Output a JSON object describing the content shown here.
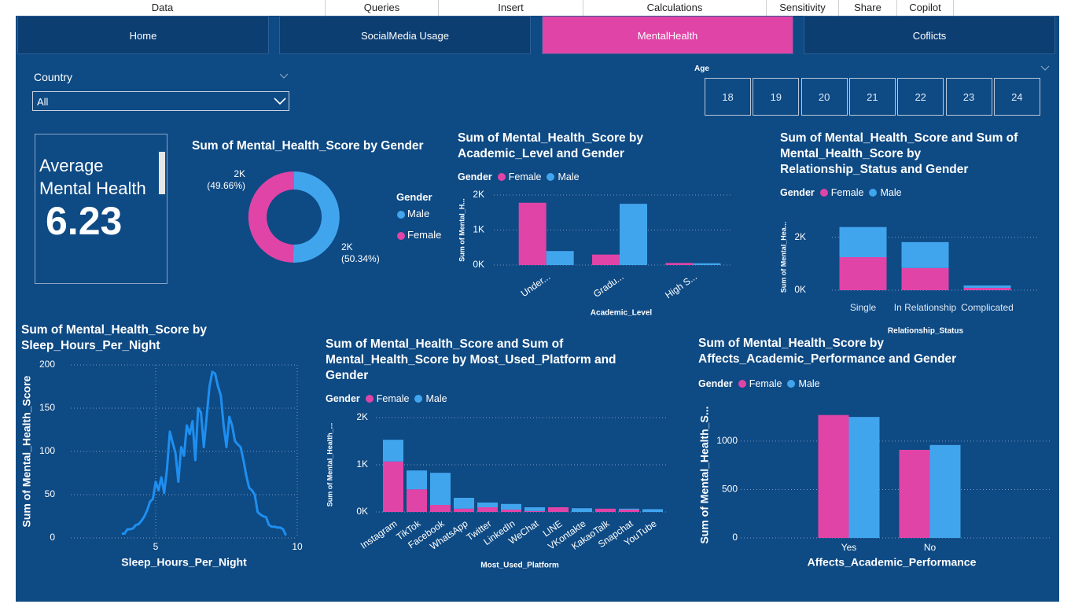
{
  "menu": [
    "Data",
    "Queries",
    "Insert",
    "Calculations",
    "Sensitivity",
    "Share",
    "Copilot"
  ],
  "tabs": [
    {
      "label": "Home",
      "active": false
    },
    {
      "label": "SocialMedia Usage",
      "active": false
    },
    {
      "label": "MentalHealth",
      "active": true
    },
    {
      "label": "Coflicts",
      "active": false
    }
  ],
  "filters": {
    "country": {
      "label": "Country",
      "value": "All"
    },
    "age": {
      "label": "Age",
      "options": [
        18,
        19,
        20,
        21,
        22,
        23,
        24
      ]
    }
  },
  "card": {
    "label": "Average Mental Health",
    "value": 6.23
  },
  "chart_data": [
    {
      "type": "donut",
      "title": "Sum of Mental_Health_Score by Gender",
      "legend_title": "Gender",
      "categories": [
        "Male",
        "Female"
      ],
      "values": [
        2212,
        2182
      ],
      "value_labels": [
        "2K (50.34%)",
        "2K (49.66%)"
      ],
      "colors": [
        "#41a5ee",
        "#e044a7"
      ]
    },
    {
      "type": "bar",
      "stacked": false,
      "title": "Sum of Mental_Health_Score by Academic_Level and Gender",
      "legend_title": "Gender",
      "x_label": "Academic_Level",
      "y_label": "Sum of Mental_H...",
      "categories": [
        "Under...",
        "Gradu...",
        "High S..."
      ],
      "series": [
        {
          "name": "Female",
          "color": "#e044a7",
          "values": [
            1780,
            300,
            60
          ]
        },
        {
          "name": "Male",
          "color": "#41a5ee",
          "values": [
            400,
            1750,
            50
          ]
        }
      ],
      "ylim": [
        0,
        2000
      ],
      "yticks": [
        {
          "value": 0,
          "label": "0K"
        },
        {
          "value": 1000,
          "label": "1K"
        },
        {
          "value": 2000,
          "label": "2K"
        }
      ],
      "grid": true
    },
    {
      "type": "bar",
      "stacked": true,
      "title": "Sum of Mental_Health_Score and Sum of Mental_Health_Score by Relationship_Status and Gender",
      "legend_title": "Gender",
      "x_label": "Relationship_Status",
      "y_label": "Sum of Mental_Hea...",
      "categories": [
        "Single",
        "In Relationship",
        "Complicated"
      ],
      "series": [
        {
          "name": "Female",
          "color": "#e044a7",
          "values": [
            1250,
            840,
            90
          ]
        },
        {
          "name": "Male",
          "color": "#41a5ee",
          "values": [
            1140,
            980,
            90
          ]
        }
      ],
      "ylim": [
        0,
        2500
      ],
      "yticks": [
        {
          "value": 0,
          "label": "0K"
        },
        {
          "value": 2000,
          "label": "2K"
        }
      ],
      "grid": true
    },
    {
      "type": "line",
      "title": "Sum of Mental_Health_Score by Sleep_Hours_Per_Night",
      "x_label": "Sleep_Hours_Per_Night",
      "y_label": "Sum of Mental_Health_Score",
      "color": "#1e8ff0",
      "x": [
        3.8,
        3.9,
        4.0,
        4.1,
        4.2,
        4.3,
        4.4,
        4.5,
        4.6,
        4.7,
        4.8,
        4.9,
        5.0,
        5.1,
        5.2,
        5.3,
        5.4,
        5.5,
        5.6,
        5.7,
        5.8,
        5.9,
        6.0,
        6.1,
        6.2,
        6.3,
        6.4,
        6.5,
        6.6,
        6.7,
        6.8,
        6.9,
        7.0,
        7.1,
        7.2,
        7.3,
        7.4,
        7.5,
        7.6,
        7.7,
        7.8,
        7.9,
        8.0,
        8.1,
        8.2,
        8.3,
        8.4,
        8.5,
        8.6,
        8.7,
        8.8,
        8.9,
        9.0,
        9.1,
        9.2,
        9.3,
        9.4,
        9.5,
        9.6
      ],
      "values": [
        5,
        5,
        10,
        10,
        11,
        15,
        16,
        20,
        25,
        32,
        42,
        45,
        65,
        55,
        70,
        52,
        80,
        123,
        110,
        98,
        65,
        105,
        95,
        130,
        120,
        135,
        90,
        150,
        145,
        105,
        140,
        175,
        192,
        190,
        175,
        165,
        130,
        105,
        140,
        130,
        112,
        108,
        105,
        90,
        72,
        58,
        55,
        50,
        30,
        27,
        25,
        24,
        15,
        13,
        13,
        12,
        12,
        10,
        3
      ],
      "xlim": [
        2,
        10
      ],
      "xticks": [
        5,
        10
      ],
      "ylim": [
        0,
        200
      ],
      "yticks": [
        0,
        50,
        100,
        150,
        200
      ],
      "grid": true
    },
    {
      "type": "bar",
      "stacked": true,
      "title": "Sum of Mental_Health_Score and Sum of Mental_Health_Score by Most_Used_Platform and Gender",
      "legend_title": "Gender",
      "x_label": "Most_Used_Platform",
      "y_label": "Sum of Mental_Health_...",
      "categories": [
        "Instagram",
        "TikTok",
        "Facebook",
        "WhatsApp",
        "Twitter",
        "LinkedIn",
        "WeChat",
        "LINE",
        "VKontakte",
        "KakaoTalk",
        "Snapchat",
        "YouTube"
      ],
      "series": [
        {
          "name": "Female",
          "color": "#e044a7",
          "values": [
            1070,
            480,
            150,
            70,
            100,
            50,
            20,
            100,
            0,
            70,
            50,
            0
          ]
        },
        {
          "name": "Male",
          "color": "#41a5ee",
          "values": [
            460,
            400,
            680,
            230,
            100,
            120,
            80,
            0,
            80,
            0,
            20,
            60
          ]
        }
      ],
      "ylim": [
        0,
        2000
      ],
      "yticks": [
        {
          "value": 0,
          "label": "0K"
        },
        {
          "value": 1000,
          "label": "1K"
        },
        {
          "value": 2000,
          "label": "2K"
        }
      ],
      "grid": true
    },
    {
      "type": "bar",
      "stacked": false,
      "title": "Sum of Mental_Health_Score by Affects_Academic_Performance and Gender",
      "legend_title": "Gender",
      "x_label": "Affects_Academic_Performance",
      "y_label": "Sum of Mental_Health_S...",
      "categories": [
        "Yes",
        "No"
      ],
      "series": [
        {
          "name": "Female",
          "color": "#e044a7",
          "values": [
            1270,
            910
          ]
        },
        {
          "name": "Male",
          "color": "#41a5ee",
          "values": [
            1250,
            960
          ]
        }
      ],
      "ylim": [
        0,
        1300
      ],
      "yticks": [
        0,
        500,
        1000
      ],
      "grid": true
    }
  ]
}
